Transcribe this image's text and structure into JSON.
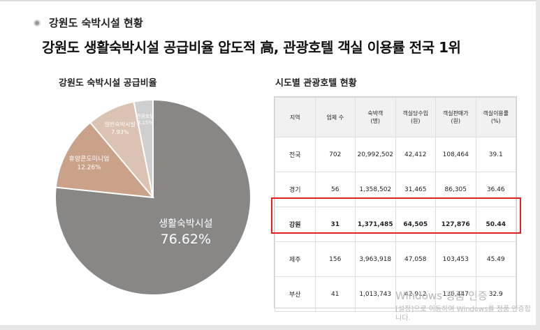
{
  "header": {
    "section_title": "강원도 숙박시설 현황"
  },
  "headline": "강원도 생활숙박시설 공급비율 압도적 高, 관광호텔 객실 이용률 전국 1위",
  "chart_data": [
    {
      "type": "pie",
      "title": "강원도 숙박시설 공급비율",
      "slices": [
        {
          "label": "생활숙박시설",
          "value": 76.62,
          "value_label": "76.62%",
          "color": "#888786"
        },
        {
          "label": "휴양콘도미니엄",
          "value": 12.26,
          "value_label": "12.26%",
          "color": "#caa28a"
        },
        {
          "label": "일반숙박시설",
          "value": 7.93,
          "value_label": "7.93%",
          "color": "#dcc2b2"
        },
        {
          "label": "관광호텔",
          "value": 3.15,
          "value_label": "3.15%",
          "color": "#cfcfcf"
        }
      ]
    },
    {
      "type": "table",
      "title": "시도별 관광호텔 현황",
      "columns": [
        [
          "지역"
        ],
        [
          "업체 수"
        ],
        [
          "숙박객",
          "(명)"
        ],
        [
          "객실당수입",
          "(원)"
        ],
        [
          "객실판매가",
          "(원)"
        ],
        [
          "객실이용률",
          "(%)"
        ]
      ],
      "rows": [
        [
          "전국",
          "702",
          "20,992,502",
          "42,412",
          "108,464",
          "39.1"
        ],
        [
          "경기",
          "56",
          "1,358,502",
          "31,465",
          "86,305",
          "36.46"
        ],
        [
          "강원",
          "31",
          "1,371,485",
          "64,505",
          "127,876",
          "50.44"
        ],
        [
          "제주",
          "156",
          "3,963,918",
          "47,058",
          "103,453",
          "45.49"
        ],
        [
          "부산",
          "41",
          "1,013,743",
          "42,912",
          "130,447",
          "32.9"
        ]
      ],
      "highlight_row": 2,
      "highlight_color": "#e02020"
    }
  ],
  "watermark": {
    "line1": "Windows 정품 인증",
    "line2": "[설정]으로 이동하여 Windows를 정품 인증합니다."
  }
}
